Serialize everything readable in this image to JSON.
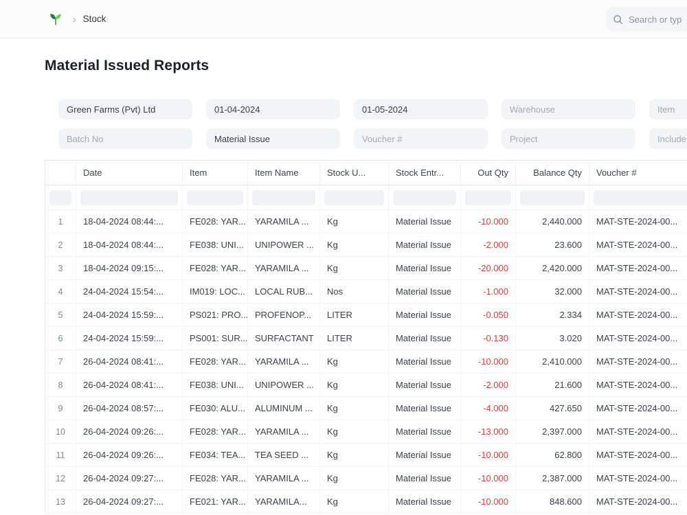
{
  "navbar": {
    "breadcrumb_separator": "›",
    "breadcrumb": "Stock",
    "search_placeholder": "Search or typ"
  },
  "page": {
    "title": "Material Issued Reports"
  },
  "filters": {
    "company": {
      "value": "Green Farms (Pvt) Ltd"
    },
    "from_date": {
      "value": "01-04-2024"
    },
    "to_date": {
      "value": "01-05-2024"
    },
    "warehouse": {
      "placeholder": "Warehouse"
    },
    "item": {
      "placeholder": "Item"
    },
    "batch_no": {
      "placeholder": "Batch No"
    },
    "voucher_type": {
      "value": "Material Issue"
    },
    "voucher_no": {
      "placeholder": "Voucher #"
    },
    "project": {
      "placeholder": "Project"
    },
    "include": {
      "placeholder": "Include..."
    }
  },
  "table": {
    "headers": {
      "index": "",
      "date": "Date",
      "item": "Item",
      "item_name": "Item Name",
      "stock_uom": "Stock U...",
      "stock_entry_type": "Stock Entr...",
      "out_qty": "Out Qty",
      "balance_qty": "Balance Qty",
      "voucher": "Voucher #"
    },
    "rows": [
      {
        "idx": "1",
        "date": "18-04-2024 08:44:...",
        "item": "FE028: YAR...",
        "item_name": "YARAMILA ...",
        "uom": "Kg",
        "entry_type": "Material Issue",
        "out_qty": "-10.000",
        "balance_qty": "2,440.000",
        "voucher": "MAT-STE-2024-00..."
      },
      {
        "idx": "2",
        "date": "18-04-2024 08:44:...",
        "item": "FE038: UNI...",
        "item_name": "UNIPOWER ...",
        "uom": "Kg",
        "entry_type": "Material Issue",
        "out_qty": "-2.000",
        "balance_qty": "23.600",
        "voucher": "MAT-STE-2024-00..."
      },
      {
        "idx": "3",
        "date": "18-04-2024 09:15:...",
        "item": "FE028: YAR...",
        "item_name": "YARAMILA ...",
        "uom": "Kg",
        "entry_type": "Material Issue",
        "out_qty": "-20.000",
        "balance_qty": "2,420.000",
        "voucher": "MAT-STE-2024-00..."
      },
      {
        "idx": "4",
        "date": "24-04-2024 15:54:...",
        "item": "IM019: LOC...",
        "item_name": "LOCAL RUB...",
        "uom": "Nos",
        "entry_type": "Material Issue",
        "out_qty": "-1.000",
        "balance_qty": "32.000",
        "voucher": "MAT-STE-2024-00..."
      },
      {
        "idx": "5",
        "date": "24-04-2024 15:59:...",
        "item": "PS021: PRO...",
        "item_name": "PROFENOP...",
        "uom": "LITER",
        "entry_type": "Material Issue",
        "out_qty": "-0.050",
        "balance_qty": "2.334",
        "voucher": "MAT-STE-2024-00..."
      },
      {
        "idx": "6",
        "date": "24-04-2024 15:59:...",
        "item": "PS001: SUR...",
        "item_name": "SURFACTANT",
        "uom": "LITER",
        "entry_type": "Material Issue",
        "out_qty": "-0.130",
        "balance_qty": "3.020",
        "voucher": "MAT-STE-2024-00..."
      },
      {
        "idx": "7",
        "date": "26-04-2024 08:41:...",
        "item": "FE028: YAR...",
        "item_name": "YARAMILA ...",
        "uom": "Kg",
        "entry_type": "Material Issue",
        "out_qty": "-10.000",
        "balance_qty": "2,410.000",
        "voucher": "MAT-STE-2024-00..."
      },
      {
        "idx": "8",
        "date": "26-04-2024 08:41:...",
        "item": "FE038: UNI...",
        "item_name": "UNIPOWER ...",
        "uom": "Kg",
        "entry_type": "Material Issue",
        "out_qty": "-2.000",
        "balance_qty": "21.600",
        "voucher": "MAT-STE-2024-00..."
      },
      {
        "idx": "9",
        "date": "26-04-2024 08:57:...",
        "item": "FE030: ALU...",
        "item_name": "ALUMINUM ...",
        "uom": "Kg",
        "entry_type": "Material Issue",
        "out_qty": "-4.000",
        "balance_qty": "427.650",
        "voucher": "MAT-STE-2024-00..."
      },
      {
        "idx": "10",
        "date": "26-04-2024 09:26:...",
        "item": "FE028: YAR...",
        "item_name": "YARAMILA ...",
        "uom": "Kg",
        "entry_type": "Material Issue",
        "out_qty": "-13.000",
        "balance_qty": "2,397.000",
        "voucher": "MAT-STE-2024-00..."
      },
      {
        "idx": "11",
        "date": "26-04-2024 09:26:...",
        "item": "FE034: TEA...",
        "item_name": "TEA SEED ...",
        "uom": "Kg",
        "entry_type": "Material Issue",
        "out_qty": "-10.000",
        "balance_qty": "62.800",
        "voucher": "MAT-STE-2024-00..."
      },
      {
        "idx": "12",
        "date": "26-04-2024 09:27:...",
        "item": "FE028: YAR...",
        "item_name": "YARAMILA ...",
        "uom": "Kg",
        "entry_type": "Material Issue",
        "out_qty": "-10.000",
        "balance_qty": "2,387.000",
        "voucher": "MAT-STE-2024-00..."
      },
      {
        "idx": "13",
        "date": "26-04-2024 09:27:...",
        "item": "FE021: YAR...",
        "item_name": "YARAMILA...",
        "uom": "Kg",
        "entry_type": "Material Issue",
        "out_qty": "-10.000",
        "balance_qty": "848.600",
        "voucher": "MAT-STE-2024-00..."
      }
    ]
  },
  "colors": {
    "negative": "#e03e3e",
    "brand_green_dark": "#1e7e45",
    "brand_green_light": "#7ec850"
  }
}
